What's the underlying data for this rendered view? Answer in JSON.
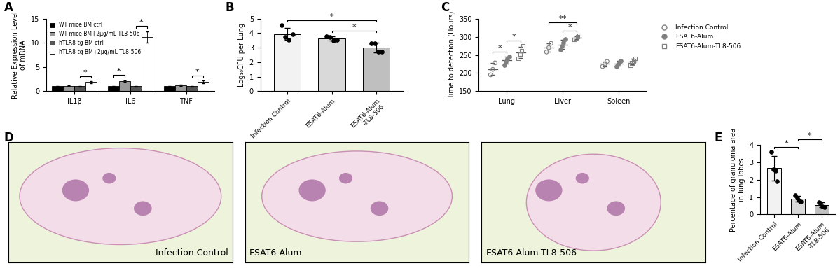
{
  "chart_data": [
    {
      "panel": "A",
      "type": "bar",
      "y_label": "Relative Expression Level\nof mRNA",
      "categories": [
        "IL1β",
        "IL6",
        "TNF"
      ],
      "ylim": [
        0,
        15
      ],
      "yticks": [
        0,
        5,
        10,
        15
      ],
      "legend": "upper left",
      "series": [
        {
          "name": "WT mice BM ctrl",
          "color": "#000000",
          "values": [
            1,
            1,
            1
          ],
          "errors": [
            0.05,
            0.05,
            0.05
          ]
        },
        {
          "name": "WT mice BM+2μg/mL TL8-506",
          "color": "#999999",
          "values": [
            1.1,
            2.1,
            1.2
          ],
          "errors": [
            0.1,
            0.15,
            0.1
          ]
        },
        {
          "name": "hTLR8-tg BM ctrl",
          "color": "#555555",
          "values": [
            1,
            1,
            1
          ],
          "errors": [
            0.05,
            0.05,
            0.05
          ]
        },
        {
          "name": "hTLR8-tg BM+2μg/mL TL8-506",
          "color": "#ffffff",
          "values": [
            1.9,
            11.2,
            1.9
          ],
          "errors": [
            0.2,
            1.2,
            0.3
          ]
        }
      ],
      "significance": [
        {
          "category": "IL1β",
          "pair": [
            "hTLR8-tg BM ctrl",
            "hTLR8-tg BM+2μg/mL TL8-506"
          ],
          "label": "*"
        },
        {
          "category": "IL6",
          "pair": [
            "WT mice BM ctrl",
            "WT mice BM+2μg/mL TL8-506"
          ],
          "label": "*"
        },
        {
          "category": "IL6",
          "pair": [
            "hTLR8-tg BM ctrl",
            "hTLR8-tg BM+2μg/mL TL8-506"
          ],
          "label": "*"
        },
        {
          "category": "TNF",
          "pair": [
            "hTLR8-tg BM ctrl",
            "hTLR8-tg BM+2μg/mL TL8-506"
          ],
          "label": "*"
        }
      ]
    },
    {
      "panel": "B",
      "type": "bar",
      "y_label": "Log₁₀CFU per Lung",
      "categories": [
        "Infection Control",
        "ESAT6-Alum",
        "ESAT6-Alum\n-TL8-506"
      ],
      "values": [
        3.95,
        3.65,
        3.0
      ],
      "errors": [
        0.4,
        0.15,
        0.33
      ],
      "points": [
        [
          4.55,
          3.75,
          3.55,
          3.95
        ],
        [
          3.8,
          3.75,
          3.5,
          3.55
        ],
        [
          3.3,
          3.3,
          2.7,
          2.7
        ]
      ],
      "colors": [
        "#f2f2f2",
        "#d9d9d9",
        "#bfbfbf"
      ],
      "ylim": [
        0,
        5
      ],
      "yticks": [
        0,
        1,
        2,
        3,
        4,
        5
      ],
      "significance": [
        {
          "pair": [
            "ESAT6-Alum",
            "ESAT6-Alum\n-TL8-506"
          ],
          "label": "*"
        },
        {
          "pair": [
            "Infection Control",
            "ESAT6-Alum\n-TL8-506"
          ],
          "label": "*"
        }
      ]
    },
    {
      "panel": "C",
      "type": "scatter",
      "y_label": "Time to detection (Hours)",
      "categories": [
        "Lung",
        "Liver",
        "Spleen"
      ],
      "ylim": [
        150,
        350
      ],
      "yticks": [
        150,
        200,
        250,
        300,
        350
      ],
      "legend": "upper left",
      "series": [
        {
          "name": "Infection Control",
          "color": "#808080",
          "marker": "open_circle",
          "points": [
            [
              195,
              210,
              228
            ],
            [
              258,
              270,
              282
            ],
            [
              218,
              225,
              232
            ]
          ],
          "means": [
            211,
            270,
            225
          ],
          "errors": [
            16,
            12,
            7
          ]
        },
        {
          "name": "ESAT6-Alum",
          "color": "#808080",
          "marker": "filled_circle",
          "points": [
            [
              222,
              232,
              240,
              245
            ],
            [
              265,
              275,
              283,
              293
            ],
            [
              218,
              224,
              230,
              234
            ]
          ],
          "means": [
            235,
            279,
            226.5
          ],
          "errors": [
            10,
            12,
            7
          ]
        },
        {
          "name": "ESAT6-Alum-TL8-506",
          "color": "#808080",
          "marker": "open_square",
          "points": [
            [
              240,
              252,
              262,
              275
            ],
            [
              293,
              297,
              300,
              303
            ],
            [
              222,
              228,
              234,
              240
            ]
          ],
          "means": [
            257,
            298,
            231
          ],
          "errors": [
            15,
            4,
            8
          ]
        }
      ],
      "significance": [
        {
          "category": "Lung",
          "pair": [
            "Infection Control",
            "ESAT6-Alum"
          ],
          "label": "*"
        },
        {
          "category": "Lung",
          "pair": [
            "ESAT6-Alum",
            "ESAT6-Alum-TL8-506"
          ],
          "label": "*"
        },
        {
          "category": "Liver",
          "pair": [
            "ESAT6-Alum",
            "ESAT6-Alum-TL8-506"
          ],
          "label": "*"
        },
        {
          "category": "Liver",
          "pair": [
            "Infection Control",
            "ESAT6-Alum-TL8-506"
          ],
          "label": "**"
        }
      ]
    },
    {
      "panel": "D",
      "type": "image",
      "captions": [
        "Infection Control",
        "ESAT6-Alum",
        "ESAT6-Alum-TL8-506"
      ]
    },
    {
      "panel": "E",
      "type": "bar",
      "y_label": "Percentage of granuloma area\nin lung lobes",
      "categories": [
        "Infection Control",
        "ESAT6-Alum",
        "ESAT6-Alum\n-TL8-506"
      ],
      "values": [
        2.65,
        0.9,
        0.55
      ],
      "errors": [
        0.7,
        0.17,
        0.15
      ],
      "points": [
        [
          3.6,
          2.6,
          2.5,
          1.9
        ],
        [
          1.1,
          0.95,
          0.8,
          0.75
        ],
        [
          0.7,
          0.65,
          0.45,
          0.4
        ]
      ],
      "colors": [
        "#f2f2f2",
        "#d9d9d9",
        "#bfbfbf"
      ],
      "ylim": [
        0,
        4
      ],
      "yticks": [
        0,
        1,
        2,
        3,
        4
      ],
      "significance": [
        {
          "pair": [
            "Infection Control",
            "ESAT6-Alum"
          ],
          "label": "*"
        },
        {
          "pair": [
            "ESAT6-Alum",
            "ESAT6-Alum\n-TL8-506"
          ],
          "label": "*"
        }
      ]
    }
  ]
}
